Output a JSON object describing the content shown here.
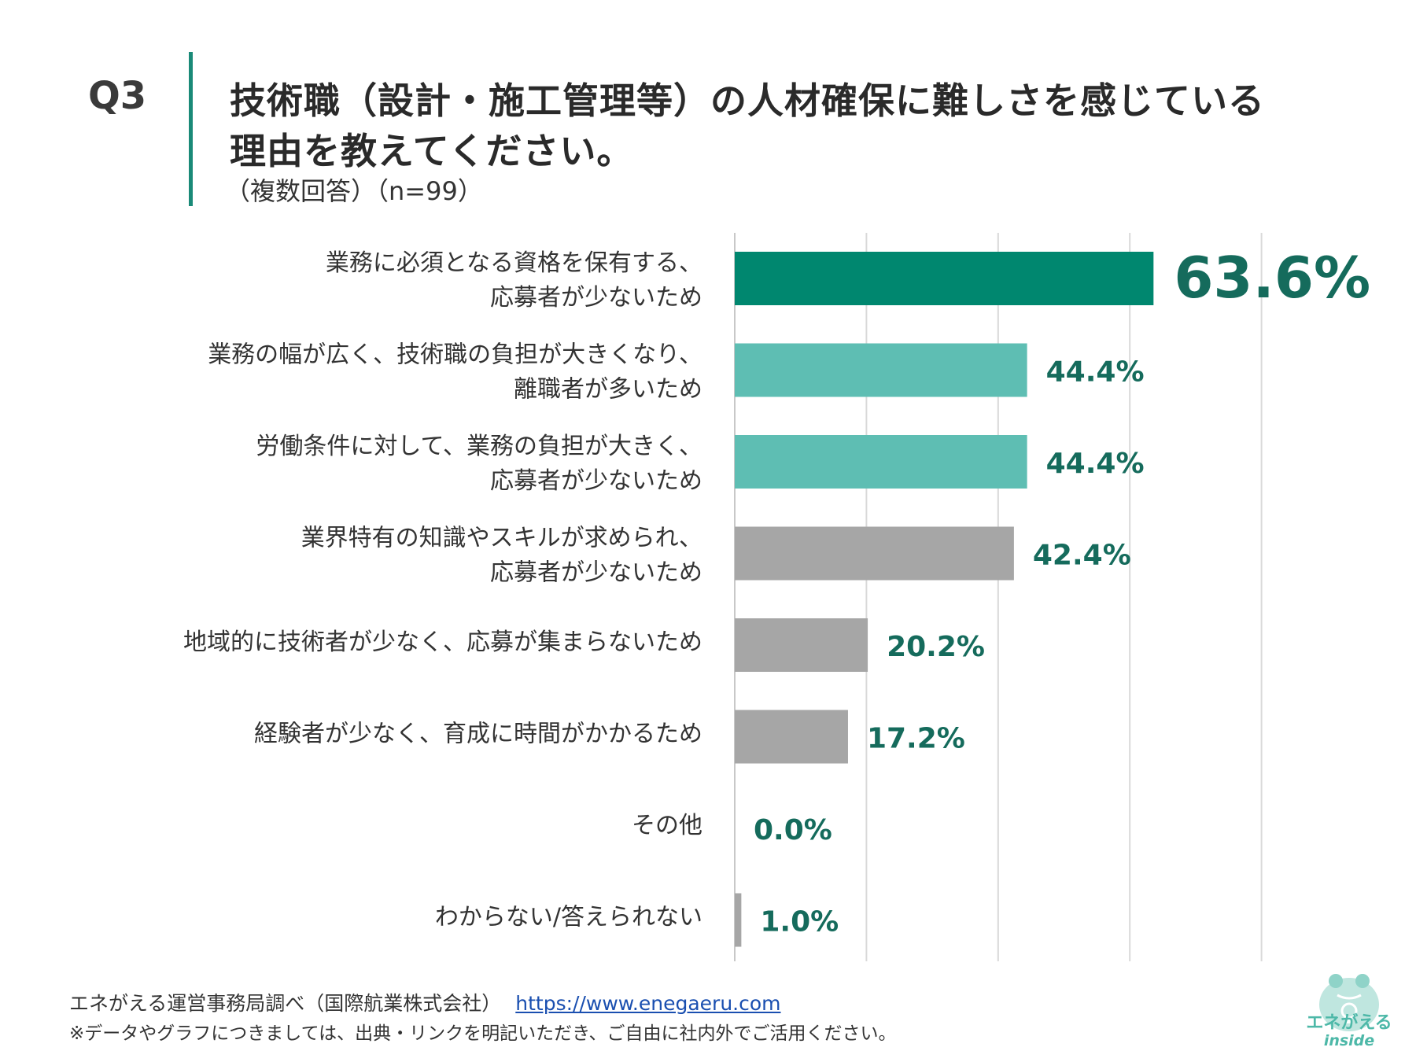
{
  "header": {
    "question": "Q3",
    "title_line1": "技術職（設計・施工管理等）の人材確保に難しさを感じている",
    "title_line2": "理由を教えてください。",
    "subtitle": "（複数回答）（n=99）"
  },
  "chart_data": {
    "type": "bar",
    "orientation": "horizontal",
    "categories": [
      [
        "業務に必須となる資格を保有する、",
        "応募者が少ないため"
      ],
      [
        "業務の幅が広く、技術職の負担が大きくなり、",
        "離職者が多いため"
      ],
      [
        "労働条件に対して、業務の負担が大きく、",
        "応募者が少ないため"
      ],
      [
        "業界特有の知識やスキルが求められ、",
        "応募者が少ないため"
      ],
      [
        "地域的に技術者が少なく、応募が集まらないため"
      ],
      [
        "経験者が少なく、育成に時間がかかるため"
      ],
      [
        "その他"
      ],
      [
        "わからない/答えられない"
      ]
    ],
    "values": [
      63.6,
      44.4,
      44.4,
      42.4,
      20.2,
      17.2,
      0.0,
      1.0
    ],
    "value_labels": [
      "63.6%",
      "44.4%",
      "44.4%",
      "42.4%",
      "20.2%",
      "17.2%",
      "0.0%",
      "1.0%"
    ],
    "bar_colors": [
      "#00876f",
      "#5ebeb3",
      "#5ebeb3",
      "#a6a6a6",
      "#a6a6a6",
      "#a6a6a6",
      "#a6a6a6",
      "#a6a6a6"
    ],
    "label_color": "#156b5c",
    "xlim": [
      0,
      100
    ],
    "gridlines": [
      0,
      20,
      40,
      60,
      80
    ],
    "grid": true
  },
  "footer": {
    "source": "エネがえる運営事務局調べ（国際航業株式会社）",
    "url": "https://www.enegaeru.com",
    "note": "※データやグラフにつきましては、出典・リンクを明記いただき、ご自由に社内外でご活用ください。"
  },
  "logo": {
    "text": "エネがえる",
    "sub": "inside"
  }
}
